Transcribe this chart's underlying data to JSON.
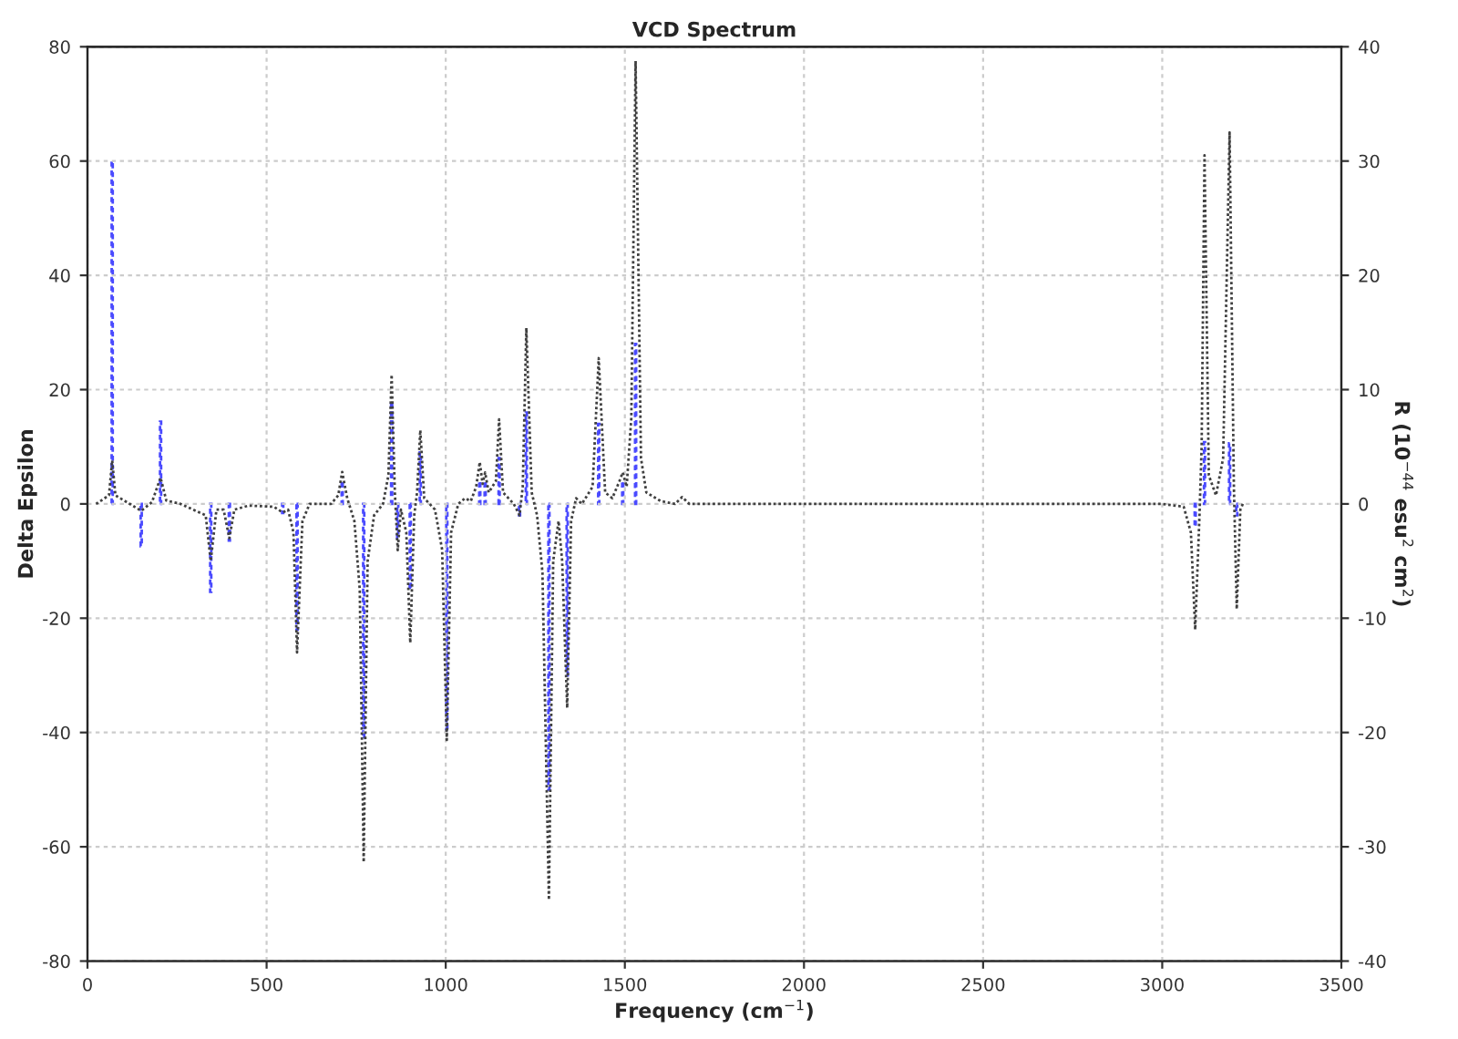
{
  "chart_data": {
    "type": "line",
    "title": "VCD Spectrum",
    "xlabel": "Frequency (cm$^{−1}$)",
    "ylabel": "Delta Epsilon",
    "y2label": "R (10$^{−44}$ esu$^{2}$ cm$^{2}$)",
    "xlim": [
      0,
      3500
    ],
    "xticks": [
      0,
      500,
      1000,
      1500,
      2000,
      2500,
      3000,
      3500
    ],
    "ylim": [
      -80,
      80
    ],
    "yticks": [
      -80,
      -60,
      -40,
      -20,
      0,
      20,
      40,
      60,
      80
    ],
    "y2lim": [
      -40,
      40
    ],
    "y2ticks": [
      -40,
      -30,
      -20,
      -10,
      0,
      10,
      20,
      30,
      40
    ],
    "grid": true,
    "legend": false,
    "series": [
      {
        "color": "#404040",
        "line_style": "dotted",
        "x": [
          24,
          60,
          69,
          78,
          110,
          150,
          180,
          204,
          220,
          260,
          330,
          344,
          360,
          380,
          396,
          410,
          450,
          520,
          545,
          560,
          575,
          585,
          600,
          620,
          680,
          700,
          711,
          725,
          745,
          760,
          771,
          782,
          800,
          825,
          840,
          849,
          858,
          866,
          875,
          890,
          901,
          912,
          920,
          929,
          940,
          970,
          990,
          1003,
          1015,
          1035,
          1054,
          1070,
          1085,
          1095,
          1103,
          1110,
          1120,
          1140,
          1149,
          1160,
          1190,
          1206,
          1215,
          1225,
          1240,
          1255,
          1270,
          1288,
          1300,
          1315,
          1325,
          1339,
          1350,
          1364,
          1380,
          1410,
          1427,
          1445,
          1465,
          1485,
          1494,
          1505,
          1518,
          1530,
          1545,
          1560,
          1600,
          1640,
          1660,
          1680,
          1800,
          2500,
          3000,
          3060,
          3080,
          3092,
          3104,
          3110,
          3118,
          3130,
          3150,
          3170,
          3188,
          3200,
          3208,
          3218,
          3225
        ],
        "values": [
          0,
          1.5,
          7.6,
          1.5,
          0.3,
          -1.2,
          0.3,
          4.6,
          0.6,
          0,
          -2,
          -10,
          -1,
          -1,
          -6,
          -1,
          -0.3,
          -0.5,
          -1.5,
          -1,
          -5,
          -26,
          -3,
          0,
          0,
          1.5,
          5.6,
          1,
          -3,
          -15,
          -62.7,
          -10,
          -2,
          0,
          5,
          22.6,
          2,
          -8.1,
          -1,
          -5,
          -24.3,
          -2,
          2,
          12.9,
          1,
          -1,
          -8,
          -41.3,
          -5,
          0,
          1,
          0.5,
          3,
          7.3,
          3.5,
          5.5,
          2,
          4,
          14.8,
          2,
          0,
          -2,
          3,
          30.8,
          2,
          -2,
          -12,
          -69.3,
          -10,
          -3,
          -10,
          -35.7,
          -3,
          1,
          0,
          3,
          25.5,
          2,
          1,
          4,
          5.5,
          3,
          15,
          77.5,
          8,
          2,
          0.5,
          0,
          1.2,
          0,
          0,
          0,
          0,
          -0.5,
          -5,
          -22,
          -2,
          10,
          61,
          5,
          1.5,
          8,
          65,
          3,
          -18.4,
          -1,
          0
        ]
      },
      {
        "type": "bar",
        "axis": "y2",
        "color": "#4a4aff",
        "line_style": "dashed",
        "x": [
          69,
          150,
          204,
          344,
          396,
          545,
          585,
          711,
          771,
          849,
          866,
          901,
          929,
          1003,
          1095,
          1110,
          1149,
          1206,
          1225,
          1288,
          1339,
          1427,
          1494,
          1530,
          3092,
          3118,
          3188,
          3208
        ],
        "values": [
          30,
          -3.7,
          7.2,
          -7.7,
          -3.2,
          -0.8,
          -11,
          2,
          -20.5,
          9,
          -3,
          -7.5,
          4.5,
          -20,
          2,
          2,
          4,
          -1,
          8,
          -25,
          -15,
          7,
          2,
          14,
          -2,
          5.4,
          5.3,
          -1
        ]
      }
    ]
  }
}
